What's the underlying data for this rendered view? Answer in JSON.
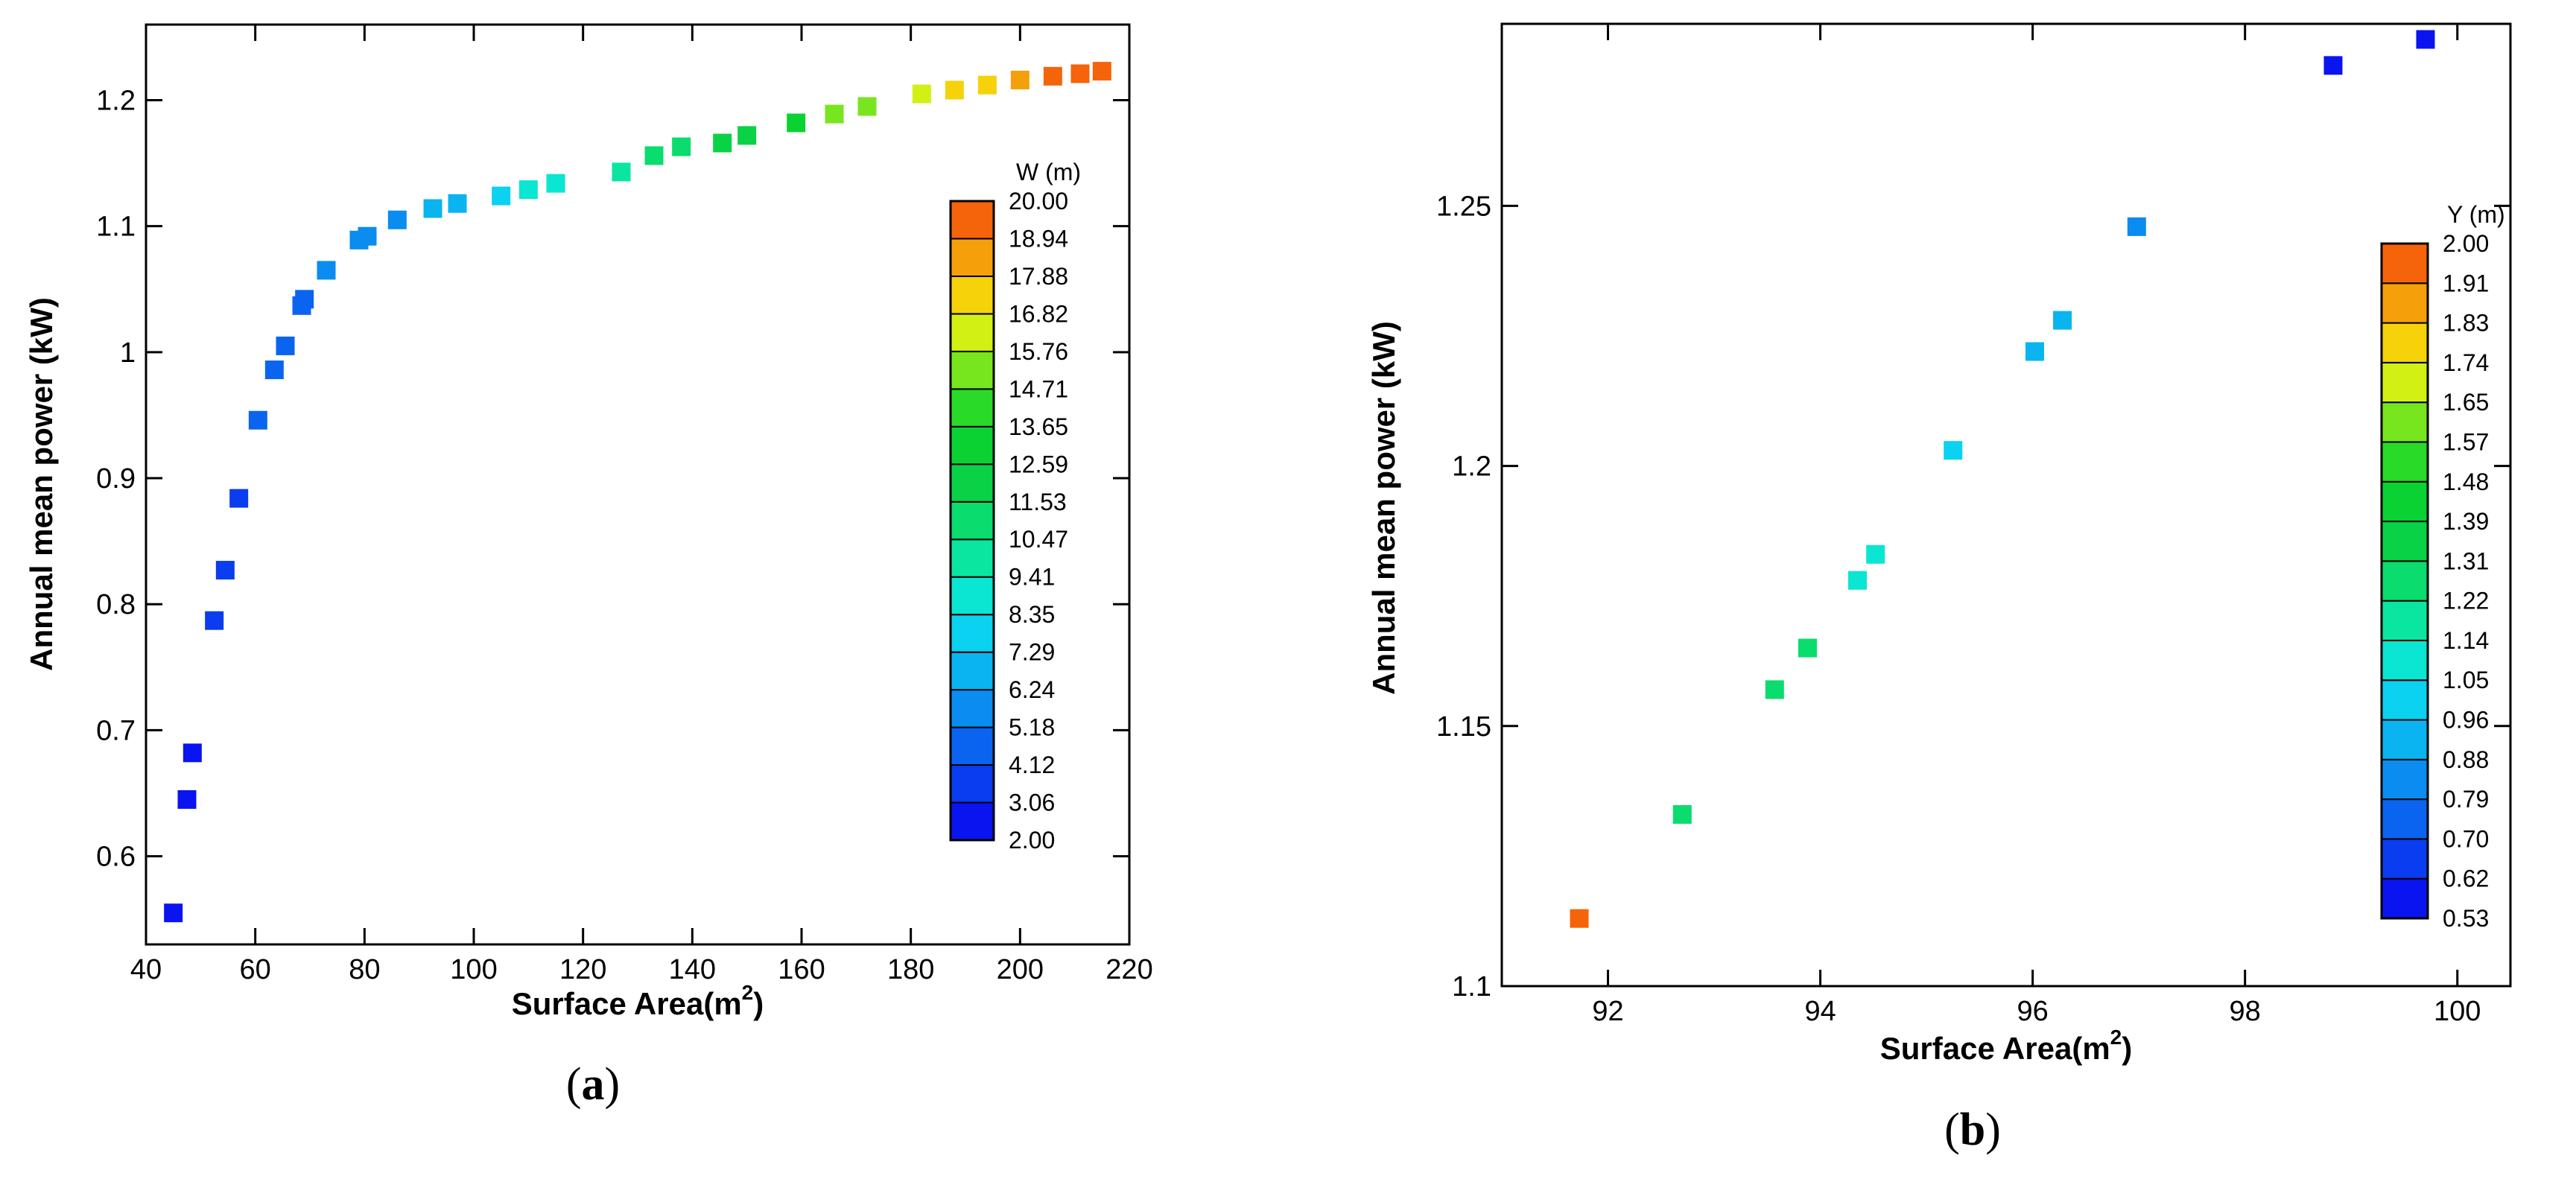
{
  "chart_data": [
    {
      "type": "scatter",
      "panel_label": "(a)",
      "panel_letter": "a",
      "xlabel": "Surface Area(m",
      "xlabel_sup": "2",
      "xlabel_end": ")",
      "ylabel": "Annual mean power (kW)",
      "xlim": [
        40,
        220
      ],
      "ylim": [
        0.53,
        1.26
      ],
      "xticks": [
        40,
        60,
        80,
        100,
        120,
        140,
        160,
        180,
        200,
        220
      ],
      "yticks": [
        0.6,
        0.7,
        0.8,
        0.9,
        1.0,
        1.1,
        1.2
      ],
      "ytick_labels": [
        "0.6",
        "0.7",
        "0.8",
        "0.9",
        "1",
        "1.1",
        "1.2"
      ],
      "colorbar": {
        "title": "W (m)",
        "min": 2.0,
        "max": 20.0,
        "labels": [
          "20.00",
          "18.94",
          "17.88",
          "16.82",
          "15.76",
          "14.71",
          "13.65",
          "12.59",
          "11.53",
          "10.47",
          "9.41",
          "8.35",
          "7.29",
          "6.24",
          "5.18",
          "4.12",
          "3.06",
          "2.00"
        ]
      },
      "points": [
        {
          "x": 45,
          "y": 0.555,
          "c": 2.5
        },
        {
          "x": 47.5,
          "y": 0.645,
          "c": 2.8
        },
        {
          "x": 48.5,
          "y": 0.682,
          "c": 3.0
        },
        {
          "x": 52.5,
          "y": 0.787,
          "c": 3.4
        },
        {
          "x": 54.5,
          "y": 0.827,
          "c": 3.8
        },
        {
          "x": 57,
          "y": 0.884,
          "c": 4.1
        },
        {
          "x": 60.5,
          "y": 0.946,
          "c": 4.3
        },
        {
          "x": 63.5,
          "y": 0.986,
          "c": 4.5
        },
        {
          "x": 65.5,
          "y": 1.005,
          "c": 4.8
        },
        {
          "x": 68.5,
          "y": 1.037,
          "c": 5.0
        },
        {
          "x": 69,
          "y": 1.042,
          "c": 5.1
        },
        {
          "x": 73,
          "y": 1.065,
          "c": 5.3
        },
        {
          "x": 79,
          "y": 1.089,
          "c": 5.6
        },
        {
          "x": 80.5,
          "y": 1.092,
          "c": 5.8
        },
        {
          "x": 86,
          "y": 1.105,
          "c": 6.1
        },
        {
          "x": 92.5,
          "y": 1.114,
          "c": 6.6
        },
        {
          "x": 97,
          "y": 1.118,
          "c": 7.2
        },
        {
          "x": 105,
          "y": 1.124,
          "c": 8.0
        },
        {
          "x": 110,
          "y": 1.129,
          "c": 8.6
        },
        {
          "x": 115,
          "y": 1.134,
          "c": 9.4
        },
        {
          "x": 127,
          "y": 1.143,
          "c": 10.2
        },
        {
          "x": 133,
          "y": 1.156,
          "c": 10.8
        },
        {
          "x": 138,
          "y": 1.163,
          "c": 11.2
        },
        {
          "x": 145.5,
          "y": 1.166,
          "c": 11.8
        },
        {
          "x": 150,
          "y": 1.172,
          "c": 12.3
        },
        {
          "x": 159,
          "y": 1.182,
          "c": 13.2
        },
        {
          "x": 166,
          "y": 1.189,
          "c": 14.8
        },
        {
          "x": 172,
          "y": 1.195,
          "c": 15.5
        },
        {
          "x": 182,
          "y": 1.205,
          "c": 16.3
        },
        {
          "x": 188,
          "y": 1.208,
          "c": 17.0
        },
        {
          "x": 194,
          "y": 1.212,
          "c": 17.6
        },
        {
          "x": 200,
          "y": 1.216,
          "c": 18.3
        },
        {
          "x": 206,
          "y": 1.219,
          "c": 19.0
        },
        {
          "x": 211,
          "y": 1.221,
          "c": 19.5
        },
        {
          "x": 215,
          "y": 1.223,
          "c": 19.9
        }
      ]
    },
    {
      "type": "scatter",
      "panel_label": "(b)",
      "panel_letter": "b",
      "xlabel": "Surface Area(m",
      "xlabel_sup": "2",
      "xlabel_end": ")",
      "ylabel": "Annual mean power (kW)",
      "xlim": [
        91,
        100.5
      ],
      "ylim": [
        1.1,
        1.285
      ],
      "xticks": [
        92,
        94,
        96,
        98,
        100
      ],
      "yticks": [
        1.1,
        1.15,
        1.2,
        1.25
      ],
      "ytick_labels": [
        "1.1",
        "1.15",
        "1.2",
        "1.25"
      ],
      "colorbar": {
        "title": "Y (m)",
        "min": 0.53,
        "max": 2.0,
        "labels": [
          "2.00",
          "1.91",
          "1.83",
          "1.74",
          "1.65",
          "1.57",
          "1.48",
          "1.39",
          "1.31",
          "1.22",
          "1.14",
          "1.05",
          "0.96",
          "0.88",
          "0.79",
          "0.70",
          "0.62",
          "0.53"
        ]
      },
      "points": [
        {
          "x": 91.73,
          "y": 1.113,
          "c": 1.93
        },
        {
          "x": 92.7,
          "y": 1.133,
          "c": 1.3
        },
        {
          "x": 93.57,
          "y": 1.157,
          "c": 1.26
        },
        {
          "x": 93.88,
          "y": 1.165,
          "c": 1.24
        },
        {
          "x": 94.35,
          "y": 1.178,
          "c": 1.1
        },
        {
          "x": 94.52,
          "y": 1.183,
          "c": 1.09
        },
        {
          "x": 95.25,
          "y": 1.203,
          "c": 1.02
        },
        {
          "x": 96.02,
          "y": 1.222,
          "c": 0.92
        },
        {
          "x": 96.28,
          "y": 1.228,
          "c": 0.91
        },
        {
          "x": 96.98,
          "y": 1.246,
          "c": 0.87
        },
        {
          "x": 98.83,
          "y": 1.277,
          "c": 0.6
        },
        {
          "x": 99.7,
          "y": 1.282,
          "c": 0.58
        }
      ]
    }
  ]
}
